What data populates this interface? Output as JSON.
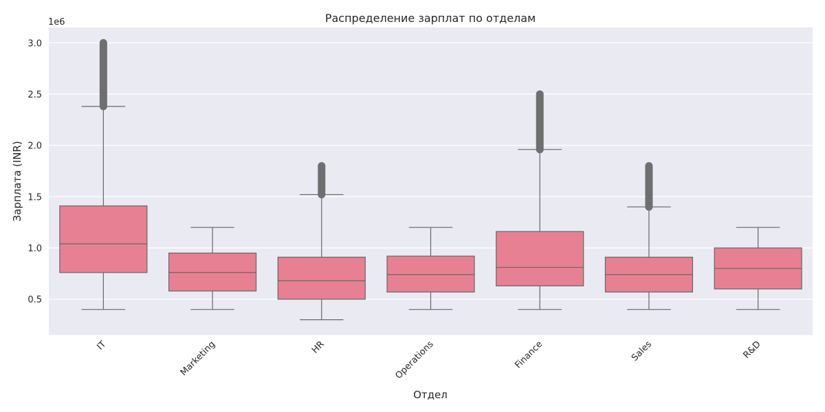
{
  "chart_data": {
    "type": "box",
    "title": "Распределение зарплат по отделам",
    "xlabel": "Отдел",
    "ylabel": "Зарплата (INR)",
    "y_offset_label": "1e6",
    "ylim": [
      150000,
      3150000
    ],
    "yticks": [
      500000,
      1000000,
      1500000,
      2000000,
      2500000,
      3000000
    ],
    "ytick_labels": [
      "0.5",
      "1.0",
      "1.5",
      "2.0",
      "2.5",
      "3.0"
    ],
    "grid": true,
    "colors": {
      "background": "#eaeaf2",
      "box_fill": "#e88093",
      "box_edge": "#666666",
      "outlier": "#6f6f6f",
      "grid": "#ffffff"
    },
    "series": [
      {
        "category": "IT",
        "whisker_low": 400000,
        "q1": 760000,
        "median": 1040000,
        "q3": 1410000,
        "whisker_high": 2380000,
        "outliers_range": [
          2380000,
          3000000
        ]
      },
      {
        "category": "Marketing",
        "whisker_low": 400000,
        "q1": 580000,
        "median": 760000,
        "q3": 950000,
        "whisker_high": 1200000,
        "outliers_range": null
      },
      {
        "category": "HR",
        "whisker_low": 300000,
        "q1": 500000,
        "median": 680000,
        "q3": 910000,
        "whisker_high": 1520000,
        "outliers_range": [
          1520000,
          1800000
        ]
      },
      {
        "category": "Operations",
        "whisker_low": 400000,
        "q1": 570000,
        "median": 740000,
        "q3": 920000,
        "whisker_high": 1200000,
        "outliers_range": null
      },
      {
        "category": "Finance",
        "whisker_low": 400000,
        "q1": 630000,
        "median": 810000,
        "q3": 1160000,
        "whisker_high": 1960000,
        "outliers_range": [
          1960000,
          2500000
        ]
      },
      {
        "category": "Sales",
        "whisker_low": 400000,
        "q1": 570000,
        "median": 740000,
        "q3": 910000,
        "whisker_high": 1400000,
        "outliers_range": [
          1400000,
          1800000
        ]
      },
      {
        "category": "R&D",
        "whisker_low": 400000,
        "q1": 600000,
        "median": 800000,
        "q3": 1000000,
        "whisker_high": 1200000,
        "outliers_range": null
      }
    ]
  }
}
